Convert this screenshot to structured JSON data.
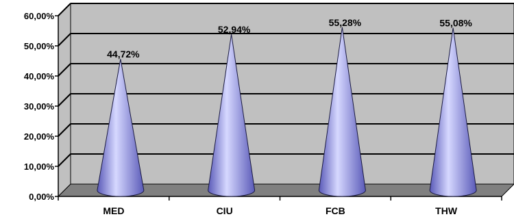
{
  "chart_data": {
    "type": "bar",
    "shape": "cone",
    "categories": [
      "MED",
      "CIU",
      "FCB",
      "THW"
    ],
    "values": [
      44.72,
      52.94,
      55.28,
      55.08
    ],
    "data_labels": [
      "44,72%",
      "52,94%",
      "55,28%",
      "55,08%"
    ],
    "ylim": [
      0,
      60
    ],
    "ytick_values": [
      0,
      10,
      20,
      30,
      40,
      50,
      60
    ],
    "yticks": [
      "0,00%",
      "10,00%",
      "20,00%",
      "30,00%",
      "40,00%",
      "50,00%",
      "60,00%"
    ],
    "grid": true,
    "legend": "none",
    "title": "",
    "xlabel": "",
    "ylabel": "",
    "colors": {
      "wall": "#c0c0c0",
      "floor": "#808080",
      "gridline": "#000000",
      "cone_light": "#d6d8ff",
      "cone_mid": "#9b9cf0",
      "cone_dark": "#5a5ab8"
    }
  }
}
